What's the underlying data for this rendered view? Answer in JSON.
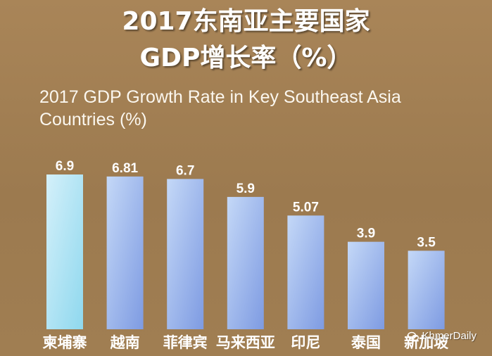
{
  "chart_data": {
    "type": "bar",
    "title": "2017东南亚主要国家",
    "title_line2": "GDP增长率（%）",
    "subtitle": "2017 GDP Growth Rate in Key Southeast Asia Countries (%)",
    "categories": [
      "柬埔寨",
      "越南",
      "菲律宾",
      "马来西亚",
      "印尼",
      "泰国",
      "新加坡"
    ],
    "values": [
      6.9,
      6.81,
      6.7,
      5.9,
      5.07,
      3.9,
      3.5
    ],
    "value_labels": [
      "6.9",
      "6.81",
      "6.7",
      "5.9",
      "5.07",
      "3.9",
      "3.5"
    ],
    "xlabel": "",
    "ylabel": "",
    "ylim": [
      0,
      6.9
    ],
    "grid": false,
    "colors": {
      "bar_top": "#c4d8f7",
      "bar_bottom": "#7e9be2",
      "first_bar_top": "#d4f0fa",
      "first_bar_bottom": "#8fd8ee",
      "background": "#a48154"
    }
  },
  "watermark": {
    "text": "KhmerDaily",
    "icon": "chat-bubble-icon"
  }
}
